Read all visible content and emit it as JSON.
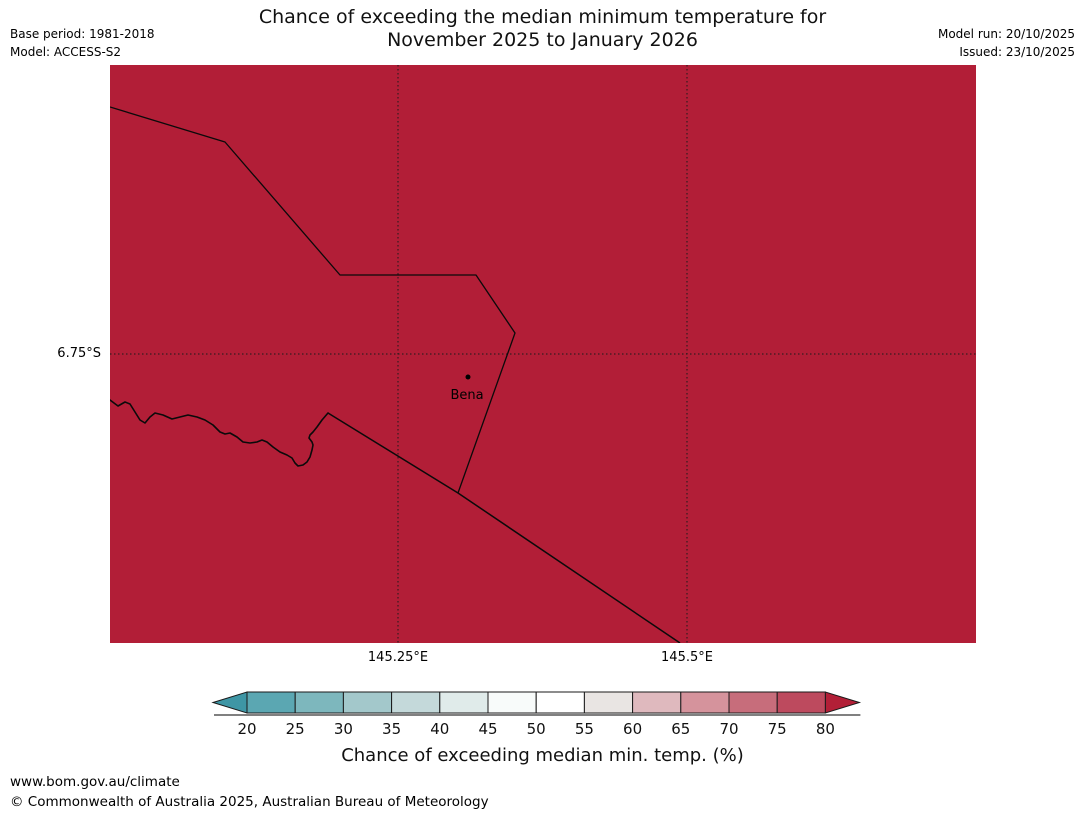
{
  "header": {
    "base_period": "Base period: 1981-2018",
    "model": "Model: ACCESS-S2",
    "title_line1": "Chance of exceeding the median minimum temperature for",
    "title_line2": "November 2025 to January 2026",
    "model_run": "Model run: 20/10/2025",
    "issued": "Issued: 23/10/2025"
  },
  "map": {
    "fill_color": "#b21e37",
    "place_label": "Bena",
    "y_axis_label": "6.75°S",
    "x_axis_labels": [
      "145.25°E",
      "145.5°E"
    ]
  },
  "colorbar": {
    "ticks": [
      20,
      25,
      30,
      35,
      40,
      45,
      50,
      55,
      60,
      65,
      70,
      75,
      80
    ],
    "arrow_left_color": "#3e96a5",
    "segment_colors": [
      "#5ba7b2",
      "#7db7bd",
      "#a3c8cb",
      "#c4d9da",
      "#e0ebea",
      "#f8fbfa",
      "#ffffff",
      "#e9e5e3",
      "#dfb9be",
      "#d5939c",
      "#c76d7b",
      "#bd4a5e"
    ],
    "arrow_right_color": "#b21f37",
    "caption": "Chance of exceeding median min. temp. (%)"
  },
  "footer": {
    "url": "www.bom.gov.au/climate",
    "copyright": "© Commonwealth of Australia 2025, Australian Bureau of Meteorology"
  }
}
